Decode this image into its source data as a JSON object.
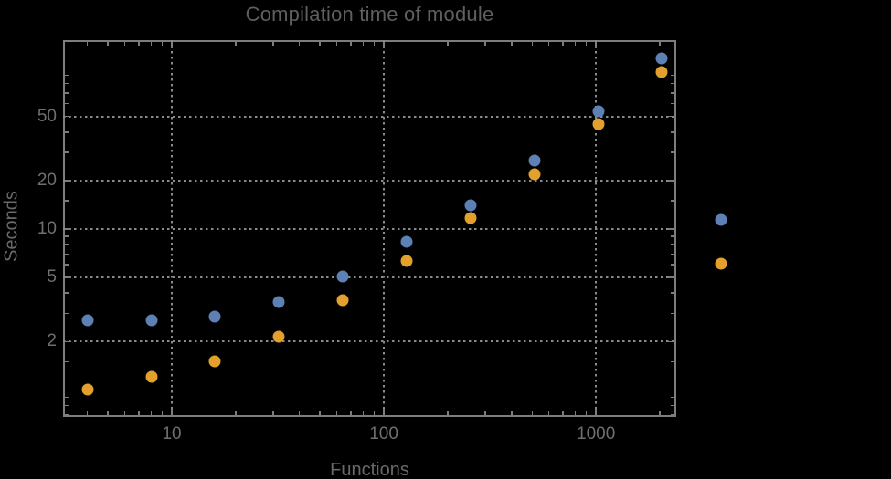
{
  "title": "Compilation time of module",
  "x_axis": {
    "label": "Functions",
    "ticks": [
      {
        "label": "10",
        "value": 10
      },
      {
        "label": "100",
        "value": 100
      },
      {
        "label": "1000",
        "value": 1000
      }
    ]
  },
  "y_axis": {
    "label": "Seconds",
    "ticks": [
      {
        "label": "2",
        "value": 2
      },
      {
        "label": "5",
        "value": 5
      },
      {
        "label": "10",
        "value": 10
      },
      {
        "label": "20",
        "value": 20
      },
      {
        "label": "50",
        "value": 50
      }
    ]
  },
  "colors": {
    "background": "#000000",
    "frame": "#7d7d7d",
    "grid": "#8a8a8a",
    "title_text": "#5f5f5f",
    "label_text": "#696969",
    "tick_text": "#6f6f6f",
    "series1": "#5e81b5",
    "series2": "#e3a02d"
  },
  "legend_markers": [
    {
      "series": "series-1-blue",
      "color": "#5e81b5"
    },
    {
      "series": "series-2-orange",
      "color": "#e3a02d"
    }
  ],
  "chart_data": {
    "type": "scatter",
    "title": "Compilation time of module",
    "xlabel": "Functions",
    "ylabel": "Seconds",
    "x_scale": "log",
    "y_scale": "log",
    "xlim": [
      3.07,
      2390
    ],
    "ylim": [
      0.68,
      149
    ],
    "grid": "dotted",
    "x_gridlines": [
      10,
      100,
      1000
    ],
    "y_gridlines": [
      2,
      5,
      10,
      20,
      50
    ],
    "x_minor_ticks": [
      4,
      5,
      6,
      7,
      8,
      9,
      20,
      30,
      40,
      50,
      60,
      70,
      80,
      90,
      200,
      300,
      400,
      500,
      600,
      700,
      800,
      900,
      2000
    ],
    "y_minor_ticks": [
      0.7,
      0.8,
      0.9,
      1,
      1.5,
      3,
      4,
      6,
      7,
      8,
      9,
      15,
      30,
      40,
      60,
      70,
      80,
      90,
      100
    ],
    "x": [
      4,
      8,
      16,
      32,
      64,
      128,
      256,
      512,
      1024,
      2048
    ],
    "series": [
      {
        "name": "series-1-blue",
        "color": "#5e81b5",
        "values": [
          2.7,
          2.7,
          2.85,
          3.5,
          5.1,
          8.3,
          14,
          26.5,
          54,
          115
        ]
      },
      {
        "name": "series-2-orange",
        "color": "#e3a02d",
        "values": [
          1.0,
          1.2,
          1.5,
          2.15,
          3.6,
          6.3,
          11.7,
          22,
          45,
          94
        ]
      }
    ],
    "legend_position": "right-outside",
    "legend_labels_visible": false
  }
}
